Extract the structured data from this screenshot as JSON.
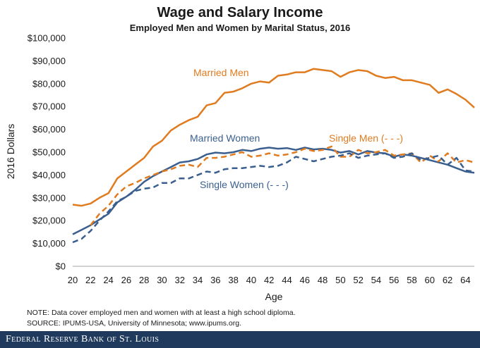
{
  "footer": {
    "bank_name": "Federal Reserve Bank of St. Louis"
  },
  "note": "NOTE: Data cover employed men and women with at least a high school diploma.",
  "source": "SOURCE: IPUMS-USA,  University of Minnesota; www.ipums.org.",
  "colors": {
    "men": "#e07b1f",
    "women": "#3a5f8f",
    "axis": "#a6a6a6"
  },
  "chart_data": {
    "type": "line",
    "title": "Wage and Salary Income",
    "subtitle": "Employed Men and Women by Marital Status, 2016",
    "xlabel": "Age",
    "ylabel": "2016 Dollars",
    "xlim": [
      20,
      65
    ],
    "ylim": [
      0,
      100000
    ],
    "grid": false,
    "x_ticks": [
      20,
      22,
      24,
      26,
      28,
      30,
      32,
      34,
      36,
      38,
      40,
      42,
      44,
      46,
      48,
      50,
      52,
      54,
      56,
      58,
      60,
      62,
      64
    ],
    "y_ticks": [
      0,
      10000,
      20000,
      30000,
      40000,
      50000,
      60000,
      70000,
      80000,
      90000,
      100000
    ],
    "y_tick_labels": [
      "$0",
      "$10,000",
      "$20,000",
      "$30,000",
      "$40,000",
      "$50,000",
      "$60,000",
      "$70,000",
      "$80,000",
      "$90,000",
      "$100,000"
    ],
    "x": [
      20,
      21,
      22,
      23,
      24,
      25,
      26,
      27,
      28,
      29,
      30,
      31,
      32,
      33,
      34,
      35,
      36,
      37,
      38,
      39,
      40,
      41,
      42,
      43,
      44,
      45,
      46,
      47,
      48,
      49,
      50,
      51,
      52,
      53,
      54,
      55,
      56,
      57,
      58,
      59,
      60,
      61,
      62,
      63,
      64,
      65
    ],
    "series": [
      {
        "name": "Married Men",
        "label": "Married Men",
        "color": "#e07b1f",
        "dash": "solid",
        "values": [
          27000,
          26500,
          27500,
          30000,
          32000,
          38500,
          41500,
          44500,
          47500,
          52500,
          55000,
          59500,
          62000,
          64000,
          65500,
          70500,
          71500,
          76000,
          76500,
          78000,
          80000,
          81000,
          80500,
          83500,
          84000,
          85000,
          85000,
          86500,
          86000,
          85500,
          83000,
          85000,
          86000,
          85500,
          83500,
          82500,
          83000,
          81500,
          81500,
          80500,
          79500,
          76000,
          77500,
          75500,
          73000,
          69500
        ]
      },
      {
        "name": "Married Women",
        "label": "Married Women",
        "color": "#3a5f8f",
        "dash": "solid",
        "values": [
          14000,
          16000,
          18000,
          20500,
          23000,
          28000,
          30500,
          33500,
          37000,
          39500,
          41500,
          43500,
          45500,
          46000,
          47000,
          49000,
          49800,
          49500,
          50000,
          51000,
          50500,
          51500,
          52000,
          51500,
          51800,
          51000,
          52000,
          51200,
          51500,
          51000,
          49800,
          50500,
          49000,
          50500,
          49800,
          49500,
          48000,
          49000,
          48500,
          47500,
          46500,
          45500,
          44500,
          43000,
          41500,
          41000
        ]
      },
      {
        "name": "Single Men",
        "label": "Single Men (- - -)",
        "color": "#e07b1f",
        "dash": "dashed",
        "values": [
          null,
          null,
          18000,
          23000,
          26500,
          31500,
          35000,
          36500,
          38500,
          40000,
          41500,
          42500,
          44000,
          44500,
          43500,
          47500,
          47500,
          48000,
          49000,
          50000,
          48000,
          48500,
          49500,
          48500,
          49000,
          50000,
          51500,
          50500,
          51000,
          52500,
          48000,
          48000,
          51000,
          49500,
          50000,
          51000,
          48500,
          49000,
          49500,
          45500,
          48500,
          46000,
          49500,
          45500,
          46500,
          45500
        ]
      },
      {
        "name": "Single Women",
        "label": "Single Women (- - -)",
        "color": "#3a5f8f",
        "dash": "dashed",
        "values": [
          10500,
          12000,
          15500,
          20000,
          24000,
          28500,
          30500,
          33000,
          34000,
          34500,
          36500,
          36500,
          38500,
          38500,
          40000,
          41500,
          41000,
          42500,
          43000,
          43000,
          43500,
          44000,
          43500,
          44000,
          45500,
          48000,
          47000,
          46000,
          47000,
          48000,
          48500,
          49500,
          47500,
          48500,
          49000,
          49500,
          47500,
          48000,
          49500,
          46500,
          47500,
          48500,
          44500,
          47500,
          42000,
          41500
        ]
      }
    ],
    "annotations": [
      {
        "series": "Married Men",
        "text": "Married Men"
      },
      {
        "series": "Married Women",
        "text": "Married Women"
      },
      {
        "series": "Single Men",
        "text": "Single Men (- - -)"
      },
      {
        "series": "Single Women",
        "text": "Single Women (- - -)"
      }
    ]
  }
}
